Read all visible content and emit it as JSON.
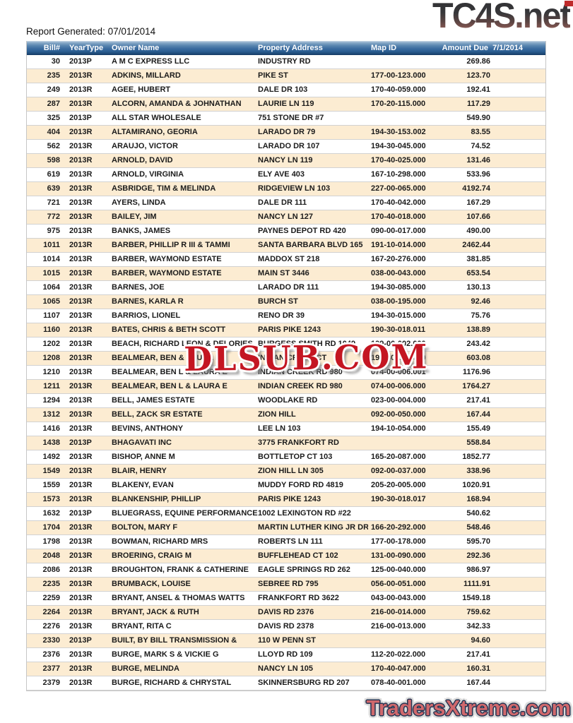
{
  "header": {
    "report_generated": "Report Generated: 07/01/2014",
    "logo": "TC4S.net"
  },
  "watermarks": {
    "center": "DLSUB.COM",
    "bottom": "TradersXtreme.com"
  },
  "colors": {
    "header_bar_top": "#8fafcc",
    "header_bar_bottom": "#163a62",
    "row_white": "#ffffff",
    "row_cream": "#fcecd2",
    "watermark_center_red": "#c41622",
    "watermark_bottom_pink": "#d0686c",
    "logo_gradient_top": "#303033",
    "logo_gradient_bottom": "#a06a61"
  },
  "table": {
    "columns": [
      "Bill#",
      "YearType",
      "Owner Name",
      "Property Address",
      "Map ID",
      "Amount Due  7/1/2014"
    ],
    "rows": [
      [
        "30",
        "2013P",
        "A M C EXPRESS LLC",
        "INDUSTRY RD",
        "",
        "269.86"
      ],
      [
        "235",
        "2013R",
        "ADKINS, MILLARD",
        "PIKE ST",
        "177-00-123.000",
        "123.70"
      ],
      [
        "249",
        "2013R",
        "AGEE, HUBERT",
        "DALE DR 103",
        "170-40-059.000",
        "192.41"
      ],
      [
        "287",
        "2013R",
        "ALCORN, AMANDA & JOHNATHAN",
        "LAURIE LN 119",
        "170-20-115.000",
        "117.29"
      ],
      [
        "325",
        "2013P",
        "ALL STAR WHOLESALE",
        "751 STONE DR #7",
        "",
        "549.90"
      ],
      [
        "404",
        "2013R",
        "ALTAMIRANO, GEORIA",
        "LARADO DR 79",
        "194-30-153.002",
        "83.55"
      ],
      [
        "562",
        "2013R",
        "ARAUJO, VICTOR",
        "LARADO DR 107",
        "194-30-045.000",
        "74.52"
      ],
      [
        "598",
        "2013R",
        "ARNOLD, DAVID",
        "NANCY LN 119",
        "170-40-025.000",
        "131.46"
      ],
      [
        "619",
        "2013R",
        "ARNOLD, VIRGINIA",
        "ELY AVE 403",
        "167-10-298.000",
        "533.96"
      ],
      [
        "639",
        "2013R",
        "ASBRIDGE, TIM & MELINDA",
        "RIDGEVIEW LN 103",
        "227-00-065.000",
        "4192.74"
      ],
      [
        "721",
        "2013R",
        "AYERS, LINDA",
        "DALE DR 111",
        "170-40-042.000",
        "167.29"
      ],
      [
        "772",
        "2013R",
        "BAILEY, JIM",
        "NANCY LN 127",
        "170-40-018.000",
        "107.66"
      ],
      [
        "975",
        "2013R",
        "BANKS, JAMES",
        "PAYNES DEPOT RD 420",
        "090-00-017.000",
        "490.00"
      ],
      [
        "1011",
        "2013R",
        "BARBER, PHILLIP R III & TAMMI",
        "SANTA BARBARA BLVD 165",
        "191-10-014.000",
        "2462.44"
      ],
      [
        "1014",
        "2013R",
        "BARBER, WAYMOND ESTATE",
        "MADDOX ST 218",
        "167-20-276.000",
        "381.85"
      ],
      [
        "1015",
        "2013R",
        "BARBER, WAYMOND ESTATE",
        "MAIN ST 3446",
        "038-00-043.000",
        "653.54"
      ],
      [
        "1064",
        "2013R",
        "BARNES, JOE",
        "LARADO DR 111",
        "194-30-085.000",
        "130.13"
      ],
      [
        "1065",
        "2013R",
        "BARNES, KARLA R",
        "BURCH ST",
        "038-00-195.000",
        "92.46"
      ],
      [
        "1107",
        "2013R",
        "BARRIOS, LIONEL",
        "RENO DR 39",
        "194-30-015.000",
        "75.76"
      ],
      [
        "1160",
        "2013R",
        "BATES, CHRIS & BETH SCOTT",
        "PARIS PIKE 1243",
        "190-30-018.011",
        "138.89"
      ],
      [
        "1202",
        "2013R",
        "BEACH, RICHARD LEON & DELORIES",
        "BURGESS SMITH RD 1049",
        "199-00-002.000",
        "243.42"
      ],
      [
        "1208",
        "2013R",
        "BEALMEAR, BEN & LAURA E",
        "INDIAN CREEK CT",
        "190-30-003.000",
        "603.08"
      ],
      [
        "1210",
        "2013R",
        "BEALMEAR, BEN L & LAURA E",
        "INDIAN CREEK RD 980",
        "074-00-006.001",
        "1176.96"
      ],
      [
        "1211",
        "2013R",
        "BEALMEAR, BEN L & LAURA E",
        "INDIAN CREEK RD 980",
        "074-00-006.000",
        "1764.27"
      ],
      [
        "1294",
        "2013R",
        "BELL, JAMES ESTATE",
        "WOODLAKE RD",
        "023-00-004.000",
        "217.41"
      ],
      [
        "1312",
        "2013R",
        "BELL, ZACK SR ESTATE",
        "ZION HILL",
        "092-00-050.000",
        "167.44"
      ],
      [
        "1416",
        "2013R",
        "BEVINS, ANTHONY",
        "LEE LN 103",
        "194-10-054.000",
        "155.49"
      ],
      [
        "1438",
        "2013P",
        "BHAGAVATI INC",
        "3775 FRANKFORT RD",
        "",
        "558.84"
      ],
      [
        "1492",
        "2013R",
        "BISHOP, ANNE M",
        "BOTTLETOP CT 103",
        "165-20-087.000",
        "1852.77"
      ],
      [
        "1549",
        "2013R",
        "BLAIR, HENRY",
        "ZION HILL LN 305",
        "092-00-037.000",
        "338.96"
      ],
      [
        "1559",
        "2013R",
        "BLAKENY, EVAN",
        "MUDDY FORD RD 4819",
        "205-20-005.000",
        "1020.91"
      ],
      [
        "1573",
        "2013R",
        "BLANKENSHIP, PHILLIP",
        "PARIS PIKE 1243",
        "190-30-018.017",
        "168.94"
      ],
      [
        "1632",
        "2013P",
        "BLUEGRASS, EQUINE PERFORMANCE",
        "1002 LEXINGTON RD #22",
        "",
        "540.62"
      ],
      [
        "1704",
        "2013R",
        "BOLTON, MARY F",
        "MARTIN LUTHER KING JR DR",
        "166-20-292.000",
        "548.46"
      ],
      [
        "1798",
        "2013R",
        "BOWMAN, RICHARD MRS",
        "ROBERTS LN 111",
        "177-00-178.000",
        "595.70"
      ],
      [
        "2048",
        "2013R",
        "BROERING, CRAIG M",
        "BUFFLEHEAD CT 102",
        "131-00-090.000",
        "292.36"
      ],
      [
        "2086",
        "2013R",
        "BROUGHTON, FRANK & CATHERINE",
        "EAGLE SPRINGS RD 262",
        "125-00-040.000",
        "986.97"
      ],
      [
        "2235",
        "2013R",
        "BRUMBACK, LOUISE",
        "SEBREE RD 795",
        "056-00-051.000",
        "1111.91"
      ],
      [
        "2259",
        "2013R",
        "BRYANT, ANSEL & THOMAS WATTS",
        "FRANKFORT RD 3622",
        "043-00-043.000",
        "1549.18"
      ],
      [
        "2264",
        "2013R",
        "BRYANT, JACK & RUTH",
        "DAVIS RD 2376",
        "216-00-014.000",
        "759.62"
      ],
      [
        "2276",
        "2013R",
        "BRYANT, RITA C",
        "DAVIS RD 2378",
        "216-00-013.000",
        "342.33"
      ],
      [
        "2330",
        "2013P",
        "BUILT, BY BILL TRANSMISSION &",
        "110 W PENN ST",
        "",
        "94.60"
      ],
      [
        "2376",
        "2013R",
        "BURGE, MARK S & VICKIE G",
        "LLOYD RD 109",
        "112-20-022.000",
        "217.41"
      ],
      [
        "2377",
        "2013R",
        "BURGE, MELINDA",
        "NANCY LN 105",
        "170-40-047.000",
        "160.31"
      ],
      [
        "2379",
        "2013R",
        "BURGE, RICHARD & CHRYSTAL",
        "SKINNERSBURG RD 207",
        "078-40-001.000",
        "167.44"
      ]
    ]
  }
}
